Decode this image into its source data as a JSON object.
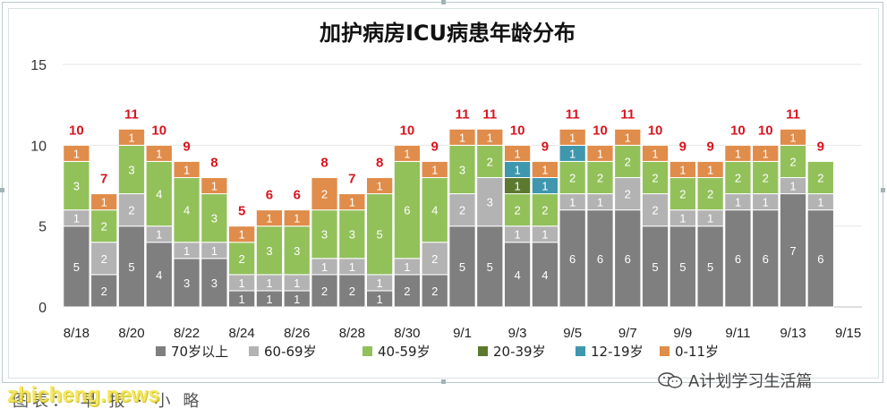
{
  "chart_data": {
    "type": "bar",
    "stacked": true,
    "title": "加护病房ICU病患年龄分布",
    "ylim": [
      0,
      15
    ],
    "yticks": [
      0,
      5,
      10,
      15
    ],
    "grid": true,
    "legend_position": "bottom",
    "categories": [
      "8/18",
      "8/19",
      "8/20",
      "8/21",
      "8/22",
      "8/23",
      "8/24",
      "8/25",
      "8/26",
      "8/27",
      "8/28",
      "8/29",
      "8/30",
      "8/31",
      "9/1",
      "9/2",
      "9/3",
      "9/4",
      "9/5",
      "9/6",
      "9/7",
      "9/8",
      "9/9",
      "9/10",
      "9/11",
      "9/12",
      "9/13",
      "9/14",
      "9/15"
    ],
    "xtick_labels": [
      "8/18",
      "",
      "8/20",
      "",
      "8/22",
      "",
      "8/24",
      "",
      "8/26",
      "",
      "8/28",
      "",
      "8/30",
      "",
      "9/1",
      "",
      "9/3",
      "",
      "9/5",
      "",
      "9/7",
      "",
      "9/9",
      "",
      "9/11",
      "",
      "9/13",
      "",
      "9/15"
    ],
    "series": [
      {
        "name": "70岁以上",
        "color": "#7f7f7f",
        "label_color": "#ffffff",
        "values": [
          5,
          2,
          5,
          4,
          3,
          3,
          1,
          1,
          1,
          2,
          2,
          1,
          2,
          2,
          5,
          5,
          4,
          4,
          6,
          6,
          6,
          5,
          5,
          5,
          6,
          6,
          7,
          6,
          0
        ]
      },
      {
        "name": "60-69岁",
        "color": "#b3b3b3",
        "label_color": "#ffffff",
        "values": [
          1,
          2,
          2,
          1,
          1,
          1,
          1,
          1,
          1,
          1,
          1,
          1,
          1,
          2,
          2,
          3,
          1,
          1,
          1,
          1,
          2,
          2,
          1,
          1,
          1,
          1,
          1,
          1,
          0
        ]
      },
      {
        "name": "40-59岁",
        "color": "#92c15a",
        "label_color": "#ffffff",
        "values": [
          3,
          2,
          3,
          4,
          4,
          3,
          2,
          3,
          3,
          3,
          3,
          5,
          6,
          4,
          3,
          2,
          2,
          2,
          2,
          2,
          2,
          2,
          2,
          2,
          2,
          2,
          2,
          2,
          0
        ]
      },
      {
        "name": "20-39岁",
        "color": "#5b7a2f",
        "label_color": "#ffffff",
        "values": [
          0,
          0,
          0,
          0,
          0,
          0,
          0,
          0,
          0,
          0,
          0,
          0,
          0,
          0,
          0,
          0,
          1,
          0,
          0,
          0,
          0,
          0,
          0,
          0,
          0,
          0,
          0,
          0,
          0
        ]
      },
      {
        "name": "12-19岁",
        "color": "#3e97ad",
        "label_color": "#ffffff",
        "values": [
          0,
          0,
          0,
          0,
          0,
          0,
          0,
          0,
          0,
          0,
          0,
          0,
          0,
          0,
          0,
          0,
          1,
          1,
          1,
          0,
          0,
          0,
          0,
          0,
          0,
          0,
          0,
          0,
          0
        ]
      },
      {
        "name": "0-11岁",
        "color": "#e08c4a",
        "label_color": "#ffffff",
        "values": [
          1,
          1,
          1,
          1,
          1,
          1,
          1,
          1,
          1,
          2,
          1,
          1,
          1,
          1,
          1,
          1,
          1,
          1,
          1,
          1,
          1,
          1,
          1,
          1,
          1,
          1,
          1,
          0,
          0
        ]
      }
    ],
    "totals": [
      "10",
      "7",
      "11",
      "10",
      "9",
      "8",
      "5",
      "6",
      "6",
      "8",
      "7",
      "8",
      "10",
      "9",
      "11",
      "11",
      "10",
      "9",
      "11",
      "10",
      "11",
      "10",
      "9",
      "9",
      "10",
      "10",
      "11",
      "9",
      ""
    ],
    "total_label_color": "#d9141f"
  },
  "footer": {
    "caption": "图表：   早 报 ·  小 略",
    "watermark": "zhicheng.news",
    "wechat_account": "A计划学习生活篇"
  }
}
